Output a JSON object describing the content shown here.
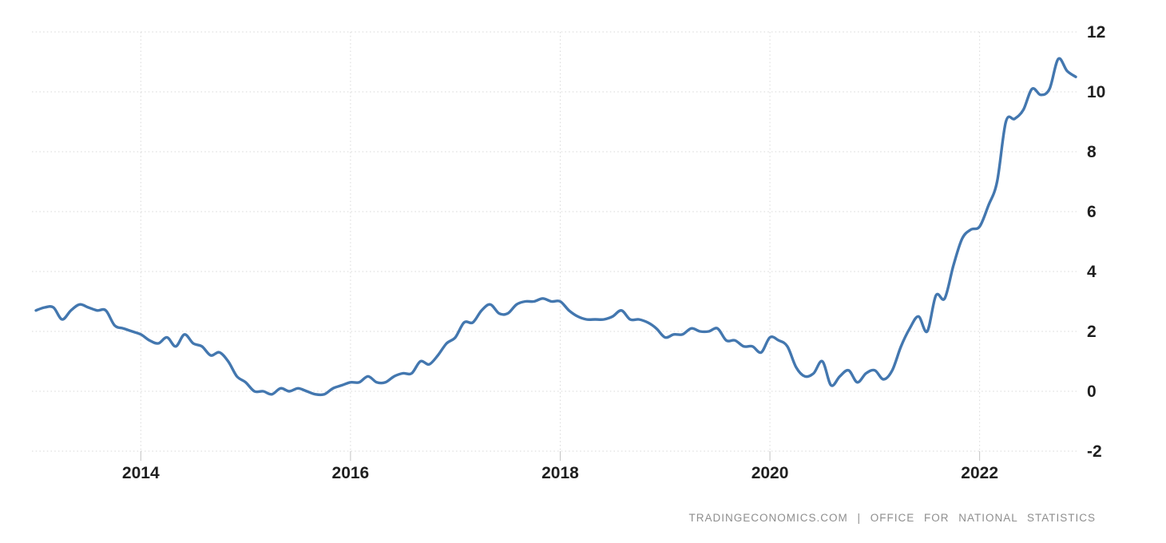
{
  "page": {
    "background": "#ffffff"
  },
  "attribution": {
    "text": "TRADINGECONOMICS.COM | OFFICE FOR NATIONAL STATISTICS",
    "color": "#8e8e8e"
  },
  "chart_data": {
    "type": "line",
    "title": "",
    "xlabel": "",
    "ylabel": "",
    "frequency": "monthly",
    "x_start": "2013-01",
    "x_end": "2022-12",
    "x_tick_labels": [
      "2014",
      "2016",
      "2018",
      "2020",
      "2022"
    ],
    "x_tick_month_indices": [
      12,
      36,
      60,
      84,
      108
    ],
    "y_ticks": [
      -2,
      0,
      2,
      4,
      6,
      8,
      10,
      12
    ],
    "ylim": [
      -2,
      12
    ],
    "grid": "dotted",
    "gridline_color": "#d8d8d8",
    "axis_tick_color": "#c2c2c2",
    "tick_label_color": "#1f1f1f",
    "legend": "none",
    "series": [
      {
        "name": "line-series-1",
        "color": "#4377af",
        "values": [
          2.7,
          2.8,
          2.8,
          2.4,
          2.7,
          2.9,
          2.8,
          2.7,
          2.7,
          2.2,
          2.1,
          2.0,
          1.9,
          1.7,
          1.6,
          1.8,
          1.5,
          1.9,
          1.6,
          1.5,
          1.2,
          1.3,
          1.0,
          0.5,
          0.3,
          0.0,
          0.0,
          -0.1,
          0.1,
          0.0,
          0.1,
          0.0,
          -0.1,
          -0.1,
          0.1,
          0.2,
          0.3,
          0.3,
          0.5,
          0.3,
          0.3,
          0.5,
          0.6,
          0.6,
          1.0,
          0.9,
          1.2,
          1.6,
          1.8,
          2.3,
          2.3,
          2.7,
          2.9,
          2.6,
          2.6,
          2.9,
          3.0,
          3.0,
          3.1,
          3.0,
          3.0,
          2.7,
          2.5,
          2.4,
          2.4,
          2.4,
          2.5,
          2.7,
          2.4,
          2.4,
          2.3,
          2.1,
          1.8,
          1.9,
          1.9,
          2.1,
          2.0,
          2.0,
          2.1,
          1.7,
          1.7,
          1.5,
          1.5,
          1.3,
          1.8,
          1.7,
          1.5,
          0.8,
          0.5,
          0.6,
          1.0,
          0.2,
          0.5,
          0.7,
          0.3,
          0.6,
          0.7,
          0.4,
          0.7,
          1.5,
          2.1,
          2.5,
          2.0,
          3.2,
          3.1,
          4.2,
          5.1,
          5.4,
          5.5,
          6.2,
          7.0,
          9.0,
          9.1,
          9.4,
          10.1,
          9.9,
          10.1,
          11.1,
          10.7,
          10.5
        ]
      }
    ]
  }
}
